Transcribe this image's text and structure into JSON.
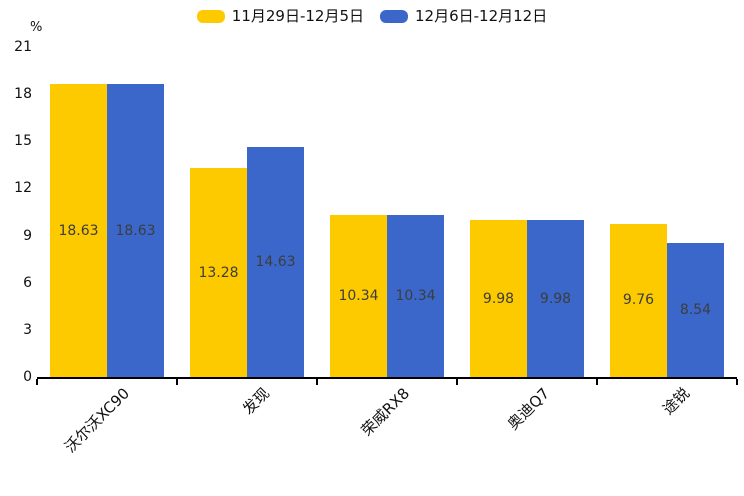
{
  "legend": {
    "items": [
      {
        "label": "11月29日-12月5日",
        "color": "#FDCA00"
      },
      {
        "label": "12月6日-12月12日",
        "color": "#3A67C9"
      }
    ]
  },
  "y_axis": {
    "unit": "%"
  },
  "chart_data": {
    "type": "bar",
    "title": "",
    "xlabel": "",
    "ylabel": "%",
    "categories": [
      "沃尔沃XC90",
      "发现",
      "荣威RX8",
      "奥迪Q7",
      "途锐"
    ],
    "series": [
      {
        "name": "11月29日-12月5日",
        "color": "#FDCA00",
        "values": [
          18.63,
          13.28,
          10.34,
          9.98,
          9.76
        ]
      },
      {
        "name": "12月6日-12月12日",
        "color": "#3A67C9",
        "values": [
          18.63,
          14.63,
          10.34,
          9.98,
          8.54
        ]
      }
    ],
    "ylim": [
      0,
      21
    ],
    "y_ticks": [
      0,
      3,
      6,
      9,
      12,
      15,
      18,
      21
    ],
    "grid": false,
    "legend_position": "top-center",
    "value_labels": "inside-middle",
    "value_label_format": "2-decimals",
    "x_label_rotation": 45
  }
}
